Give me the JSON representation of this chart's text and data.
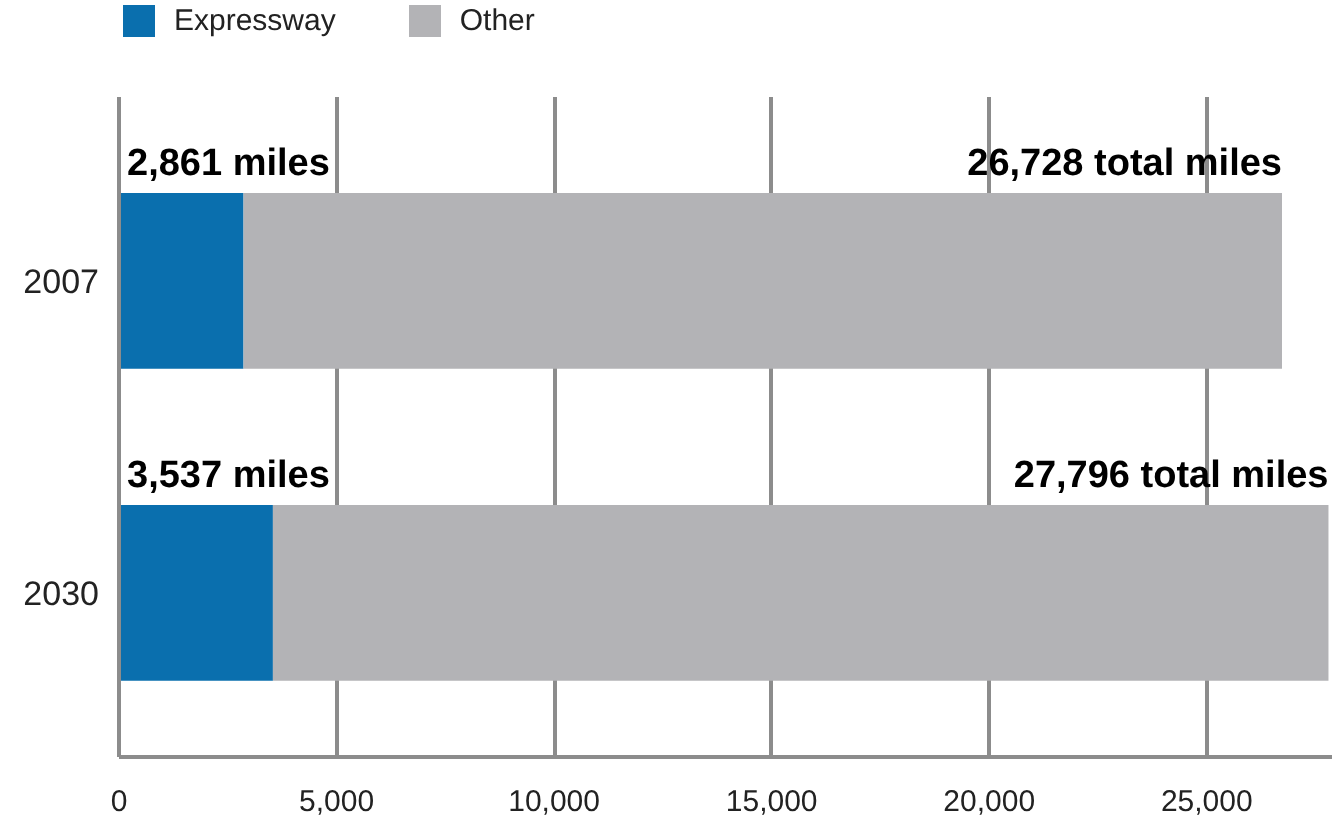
{
  "chart_data": {
    "type": "bar",
    "orientation": "horizontal",
    "stacked": true,
    "categories": [
      "2007",
      "2030"
    ],
    "series": [
      {
        "name": "Expressway",
        "color": "#0a6fae",
        "values": [
          2861,
          3537
        ],
        "value_labels": [
          "2,861 miles",
          "3,537 miles"
        ]
      },
      {
        "name": "Other",
        "color": "#b3b3b6",
        "values": [
          23867,
          24259
        ]
      }
    ],
    "totals": [
      "26,728 total miles",
      "27,796 total miles"
    ],
    "xlim": [
      0,
      27900
    ],
    "xticks": [
      0,
      {
        "value": 5000,
        "label": "5,000"
      },
      {
        "value": 10000,
        "label": "10,000"
      },
      {
        "value": 15000,
        "label": "15,000"
      },
      {
        "value": 20000,
        "label": "20,000"
      },
      {
        "value": 25000,
        "label": "25,000"
      }
    ],
    "grid": "x",
    "legend": "top left"
  }
}
